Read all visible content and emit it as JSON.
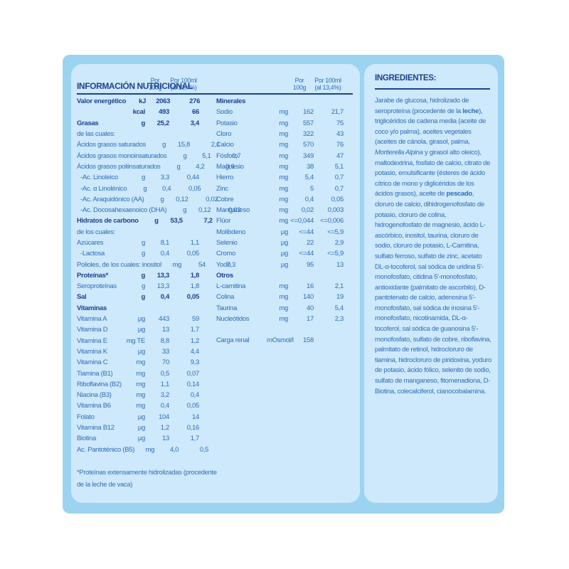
{
  "colors": {
    "outer_panel": "#9cd3f0",
    "inner_panel": "#cde9fb",
    "heading_navy": "#1e418f",
    "body_blue": "#2f6db8"
  },
  "nutrition": {
    "title": "INFORMACIÓN NUTRICIONAL",
    "col_headers": {
      "g1": "Por",
      "g2": "100g",
      "ml1": "Por 100ml",
      "ml2": "(al 13,4%)"
    },
    "left_rows": [
      {
        "label": "Valor energético",
        "unit": "kJ",
        "v1": "2063",
        "v2": "276",
        "bold": true
      },
      {
        "label": "",
        "unit": "kcal",
        "v1": "493",
        "v2": "66",
        "bold": true
      },
      {
        "label": "Grasas",
        "unit": "g",
        "v1": "25,2",
        "v2": "3,4",
        "bold": true
      },
      {
        "label": "de las cuales:",
        "unit": "",
        "v1": "",
        "v2": ""
      },
      {
        "label": "Ácidos grasos saturados",
        "unit": "g",
        "v1": "15,8",
        "v2": "2,1"
      },
      {
        "label": "Ácidos grasos monoinsaturados",
        "unit": "g",
        "v1": "5,1",
        "v2": "0,7"
      },
      {
        "label": "Ácidos grasos poliinsaturados",
        "unit": "g",
        "v1": "4,2",
        "v2": "0,6"
      },
      {
        "label": "-Ac. Linoleico",
        "unit": "g",
        "v1": "3,3",
        "v2": "0,44",
        "indent": true
      },
      {
        "label": "-Ac. α Linolénico",
        "unit": "g",
        "v1": "0,4",
        "v2": "0,05",
        "indent": true
      },
      {
        "label": "-Ac. Araquidónico (AA)",
        "unit": "g",
        "v1": "0,12",
        "v2": "0,02",
        "indent": true
      },
      {
        "label": "-Ac. Docosahexaenoico (DHA)",
        "unit": "g",
        "v1": "0,12",
        "v2": "0,02",
        "indent": true
      },
      {
        "label": "Hidratos de carbono",
        "unit": "g",
        "v1": "53,5",
        "v2": "7,2",
        "bold": true
      },
      {
        "label": "de los cuales:",
        "unit": "",
        "v1": "",
        "v2": ""
      },
      {
        "label": "Azúcares",
        "unit": "g",
        "v1": "8,1",
        "v2": "1,1"
      },
      {
        "label": "-Lactosa",
        "unit": "g",
        "v1": "0,4",
        "v2": "0,05",
        "indent": true
      },
      {
        "label": "Polioles, de los cuales: inositol",
        "unit": "mg",
        "v1": "54",
        "v2": "7,3"
      },
      {
        "label": "Proteínas*",
        "unit": "g",
        "v1": "13,3",
        "v2": "1,8",
        "bold": true
      },
      {
        "label": "Seroproteínas",
        "unit": "g",
        "v1": "13,3",
        "v2": "1,8"
      },
      {
        "label": "Sal",
        "unit": "g",
        "v1": "0,4",
        "v2": "0,05",
        "bold": true
      },
      {
        "label": "Vitaminas",
        "unit": "",
        "v1": "",
        "v2": "",
        "bold": true
      },
      {
        "label": "Vitamina A",
        "unit": "µg",
        "v1": "443",
        "v2": "59"
      },
      {
        "label": "Vitamina D",
        "unit": "µg",
        "v1": "13",
        "v2": "1,7"
      },
      {
        "label": "Vitamina E",
        "unit": "mg TE",
        "v1": "8,8",
        "v2": "1,2"
      },
      {
        "label": "Vitamina K",
        "unit": "µg",
        "v1": "33",
        "v2": "4,4"
      },
      {
        "label": "Vitamina C",
        "unit": "mg",
        "v1": "70",
        "v2": "9,3"
      },
      {
        "label": "Tiamina (B1)",
        "unit": "mg",
        "v1": "0,5",
        "v2": "0,07"
      },
      {
        "label": "Riboflavina (B2)",
        "unit": "mg",
        "v1": "1,1",
        "v2": "0,14"
      },
      {
        "label": "Niacina (B3)",
        "unit": "mg",
        "v1": "3,2",
        "v2": "0,4"
      },
      {
        "label": "Vitamina B6",
        "unit": "mg",
        "v1": "0,4",
        "v2": "0,05"
      },
      {
        "label": "Folato",
        "unit": "µg",
        "v1": "104",
        "v2": "14"
      },
      {
        "label": "Vitamina B12",
        "unit": "µg",
        "v1": "1,2",
        "v2": "0,16"
      },
      {
        "label": "Biotina",
        "unit": "µg",
        "v1": "13",
        "v2": "1,7"
      },
      {
        "label": "Ac. Pantoténico (B5)",
        "unit": "mg",
        "v1": "4,0",
        "v2": "0,5"
      }
    ],
    "right_rows": [
      {
        "label": "Minerales",
        "unit": "",
        "v1": "",
        "v2": "",
        "bold": true
      },
      {
        "label": "Sodio",
        "unit": "mg",
        "v1": "162",
        "v2": "21,7"
      },
      {
        "label": "Potasio",
        "unit": "mg",
        "v1": "557",
        "v2": "75"
      },
      {
        "label": "Cloro",
        "unit": "mg",
        "v1": "322",
        "v2": "43"
      },
      {
        "label": "Calcio",
        "unit": "mg",
        "v1": "570",
        "v2": "76"
      },
      {
        "label": "Fósforo",
        "unit": "mg",
        "v1": "349",
        "v2": "47"
      },
      {
        "label": "Magnesio",
        "unit": "mg",
        "v1": "38",
        "v2": "5,1"
      },
      {
        "label": "Hierro",
        "unit": "mg",
        "v1": "5,4",
        "v2": "0,7"
      },
      {
        "label": "Zinc",
        "unit": "mg",
        "v1": "5",
        "v2": "0,7"
      },
      {
        "label": "Cobre",
        "unit": "mg",
        "v1": "0,4",
        "v2": "0,05"
      },
      {
        "label": "Manganeso",
        "unit": "mg",
        "v1": "0,02",
        "v2": "0,003"
      },
      {
        "label": "Flúor",
        "unit": "mg",
        "v1": "<=0,044",
        "v2": "<=0,006"
      },
      {
        "label": "Molibdeno",
        "unit": "µg",
        "v1": "<=44",
        "v2": "<=5,9"
      },
      {
        "label": "Selenio",
        "unit": "µg",
        "v1": "22",
        "v2": "2,9"
      },
      {
        "label": "Cromo",
        "unit": "µg",
        "v1": "<=44",
        "v2": "<=5,9"
      },
      {
        "label": "Yodo",
        "unit": "µg",
        "v1": "95",
        "v2": "13"
      },
      {
        "label": "Otros",
        "unit": "",
        "v1": "",
        "v2": "",
        "bold": true
      },
      {
        "label": "L-carnitina",
        "unit": "mg",
        "v1": "16",
        "v2": "2,1"
      },
      {
        "label": "Colina",
        "unit": "mg",
        "v1": "140",
        "v2": "19"
      },
      {
        "label": "Taurina",
        "unit": "mg",
        "v1": "40",
        "v2": "5,4"
      },
      {
        "label": "Nucleótidos",
        "unit": "mg",
        "v1": "17",
        "v2": "2,3"
      },
      {
        "label": "Carga renal",
        "unit": "mOsmol/l",
        "v1": "158",
        "v2": "",
        "gap": true
      }
    ],
    "footnote_line1": "*Proteínas extensamente hidrolizadas (procedente",
    "footnote_line2": "de la leche de vaca)"
  },
  "ingredients": {
    "title": "INGREDIENTES:",
    "segments": [
      {
        "text": "Jarabe de glucosa, hidrolizado de seroproteína (procedente de la ",
        "style": "normal"
      },
      {
        "text": "leche",
        "style": "bold"
      },
      {
        "text": "), triglicéridos de cadena media (aceite de coco y/o palma), aceites vegetales (aceites de cánola, girasol, palma, ",
        "style": "normal"
      },
      {
        "text": "Mortierella Alpina",
        "style": "italic"
      },
      {
        "text": " y girasol alto oleico), maltodextrina, fosfato de calcio, citrato de potasio, emulsificante (ésteres de ácido cítrico de mono y diglicéridos de los ácidos grasos), aceite de ",
        "style": "normal"
      },
      {
        "text": "pescado",
        "style": "bold"
      },
      {
        "text": ", cloruro de calcio, dihidrogenofosfato de potasio, cloruro de colina, hidrogenofosfato de magnesio, ácido L-ascórbico, inositol, taurina, cloruro de sodio, cloruro de potasio, L-Carnitina, sulfato ferroso, sulfato de zinc, acetato DL-α-tocoferol, sal sódica de uridina 5'-monofosfato, citidina 5'-monofosfato, antioxidante (palmitato de ascorbilo), D-pantotenato de calcio, adenosina 5'-monofosfato, sal sódica de inosina 5'-monofosfato, nicotinamida, DL-α-tocoferol, sal sódica de guanosina 5'-monofosfato, sulfato de cobre, riboflavina, palmitato de retinol, hidrocloruro de tiamina, hidrocloruro de piridoxina, yoduro de potasio, ácido fólico, selenito de sodio, sulfato de manganeso, fitomenadiona, D-Biotina, colecalciferol, cianocobalamina.",
        "style": "normal"
      }
    ]
  }
}
